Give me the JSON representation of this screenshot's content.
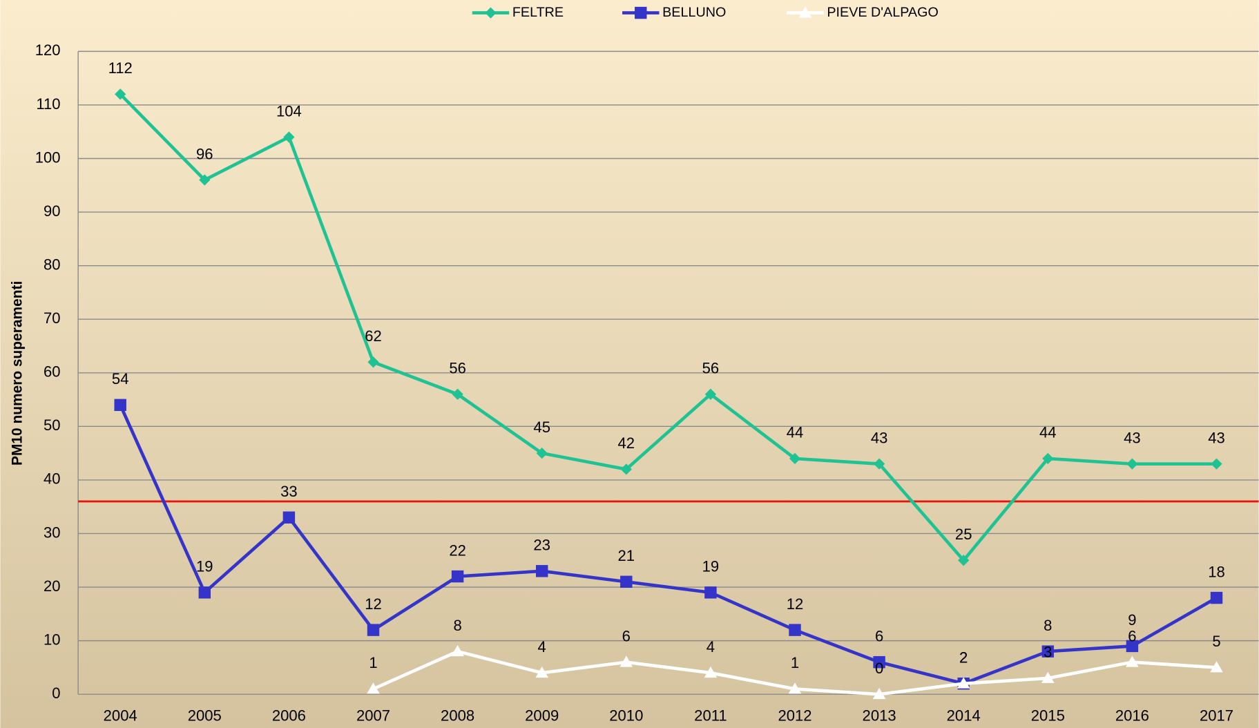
{
  "chart_data": {
    "type": "line",
    "y_axis_label": "PM10 numero superamenti",
    "categories": [
      "2004",
      "2005",
      "2006",
      "2007",
      "2008",
      "2009",
      "2010",
      "2011",
      "2012",
      "2013",
      "2014",
      "2015",
      "2016",
      "2017"
    ],
    "series": [
      {
        "name": "FELTRE",
        "color": "#1fc393",
        "marker": "diamond",
        "values": [
          112,
          96,
          104,
          62,
          56,
          45,
          42,
          56,
          44,
          43,
          25,
          44,
          43,
          43
        ]
      },
      {
        "name": "BELLUNO",
        "color": "#3434c8",
        "marker": "square",
        "values": [
          54,
          19,
          33,
          12,
          22,
          23,
          21,
          19,
          12,
          6,
          2,
          8,
          9,
          18
        ]
      },
      {
        "name": "PIEVE D'ALPAGO",
        "color": "#ffffff",
        "marker": "triangle",
        "values": [
          null,
          null,
          null,
          1,
          8,
          4,
          6,
          4,
          1,
          0,
          2,
          3,
          6,
          5
        ]
      }
    ],
    "ylim": [
      0,
      120
    ],
    "yticks": [
      0,
      10,
      20,
      30,
      40,
      50,
      60,
      70,
      80,
      90,
      100,
      110,
      120
    ],
    "grid": true,
    "reference_line": {
      "value": 36,
      "color": "#e8140c"
    },
    "legend": "top"
  }
}
